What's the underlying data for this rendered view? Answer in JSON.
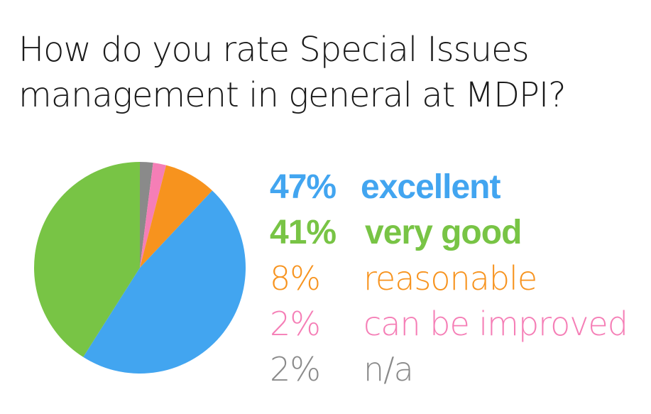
{
  "title_lines": [
    "How do you rate Special Issues",
    "management in general at MDPI?"
  ],
  "chart_data": {
    "type": "pie",
    "title": "How do you rate Special Issues management in general at MDPI?",
    "slices": [
      {
        "label": "excellent",
        "value": 47,
        "display": "47%",
        "color": "#42a5f0"
      },
      {
        "label": "very good",
        "value": 41,
        "display": "41%",
        "color": "#78c445"
      },
      {
        "label": "reasonable",
        "value": 8,
        "display": "8%",
        "color": "#f7931e"
      },
      {
        "label": "can be improved",
        "value": 2,
        "display": "2%",
        "color": "#f57eb6"
      },
      {
        "label": "n/a",
        "value": 2,
        "display": "2%",
        "color": "#8a8a8a"
      }
    ],
    "legend_placement": "right"
  }
}
